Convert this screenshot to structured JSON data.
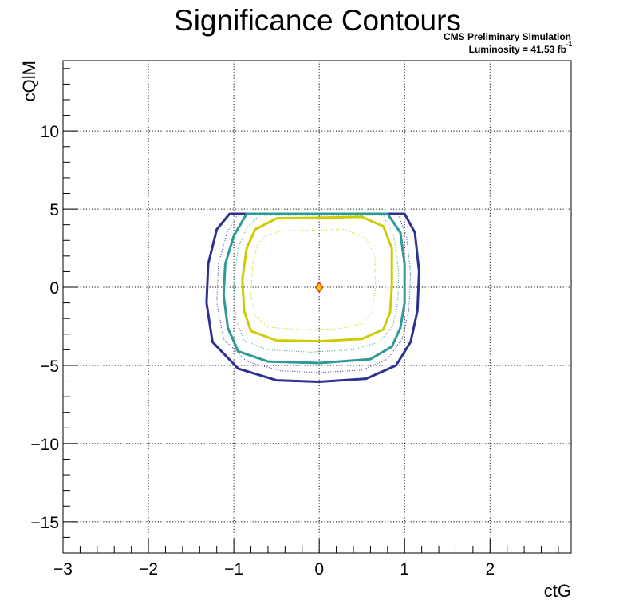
{
  "chart_data": {
    "type": "contour",
    "title": "Significance Contours",
    "xlabel": "ctG",
    "ylabel": "cQlM",
    "xlim": [
      -3,
      2.95
    ],
    "ylim": [
      -17,
      14.5
    ],
    "x_ticks": [
      -3,
      -2,
      -1,
      0,
      1,
      2
    ],
    "x_tick_labels": [
      "−3",
      "−2",
      "−1",
      "0",
      "1",
      "2"
    ],
    "y_ticks": [
      -15,
      -10,
      -5,
      0,
      5,
      10
    ],
    "y_tick_labels": [
      "−15",
      "−10",
      "−5",
      "0",
      "5",
      "10"
    ],
    "grid": true,
    "annotations": {
      "line1": "CMS Preliminary Simulation",
      "lumi_text": "Luminosity = 41.53 fb",
      "lumi_sup": "-1"
    },
    "colors": {
      "navy": "#2e3192",
      "teal": "#2c9a96",
      "yellow": "#cccc00",
      "marker_fill": "#ffd700",
      "marker_edge": "#e0301e"
    },
    "contours": [
      {
        "level": "outer-solid",
        "color": "#2e3192",
        "style": "solid",
        "points": [
          [
            -1.05,
            4.7
          ],
          [
            1.0,
            4.7
          ],
          [
            1.12,
            3.5
          ],
          [
            1.17,
            1.0
          ],
          [
            1.15,
            -1.5
          ],
          [
            1.07,
            -3.5
          ],
          [
            0.9,
            -5.0
          ],
          [
            0.55,
            -5.85
          ],
          [
            0.0,
            -6.05
          ],
          [
            -0.5,
            -5.95
          ],
          [
            -0.95,
            -5.2
          ],
          [
            -1.25,
            -3.5
          ],
          [
            -1.32,
            -1.0
          ],
          [
            -1.3,
            1.5
          ],
          [
            -1.2,
            3.7
          ],
          [
            -1.05,
            4.7
          ]
        ]
      },
      {
        "level": "navy-dotted",
        "color": "#2e3192",
        "style": "dotted",
        "points": [
          [
            -0.95,
            4.7
          ],
          [
            0.92,
            4.7
          ],
          [
            1.02,
            3.3
          ],
          [
            1.07,
            1.0
          ],
          [
            1.05,
            -1.5
          ],
          [
            0.97,
            -3.3
          ],
          [
            0.8,
            -4.6
          ],
          [
            0.5,
            -5.3
          ],
          [
            0.0,
            -5.45
          ],
          [
            -0.45,
            -5.35
          ],
          [
            -0.85,
            -4.75
          ],
          [
            -1.12,
            -3.3
          ],
          [
            -1.2,
            -1.0
          ],
          [
            -1.18,
            1.5
          ],
          [
            -1.08,
            3.5
          ],
          [
            -0.95,
            4.7
          ]
        ]
      },
      {
        "level": "teal-solid",
        "color": "#2c9a96",
        "style": "solid",
        "points": [
          [
            -0.85,
            4.7
          ],
          [
            0.8,
            4.7
          ],
          [
            0.95,
            3.5
          ],
          [
            1.0,
            1.5
          ],
          [
            1.0,
            -1.0
          ],
          [
            0.95,
            -2.6
          ],
          [
            0.85,
            -3.8
          ],
          [
            0.6,
            -4.6
          ],
          [
            0.0,
            -4.85
          ],
          [
            -0.6,
            -4.75
          ],
          [
            -0.95,
            -4.1
          ],
          [
            -1.07,
            -2.6
          ],
          [
            -1.12,
            -0.5
          ],
          [
            -1.1,
            1.5
          ],
          [
            -1.0,
            3.3
          ],
          [
            -0.85,
            4.7
          ]
        ]
      },
      {
        "level": "teal-dotted",
        "color": "#2c9a96",
        "style": "dotted",
        "points": [
          [
            -0.7,
            4.6
          ],
          [
            0.75,
            4.6
          ],
          [
            0.87,
            3.3
          ],
          [
            0.93,
            1.0
          ],
          [
            0.92,
            -1.0
          ],
          [
            0.86,
            -2.5
          ],
          [
            0.7,
            -3.5
          ],
          [
            0.4,
            -4.0
          ],
          [
            -0.1,
            -4.15
          ],
          [
            -0.6,
            -4.0
          ],
          [
            -0.88,
            -3.4
          ],
          [
            -0.98,
            -2.0
          ],
          [
            -1.0,
            0.5
          ],
          [
            -0.95,
            2.5
          ],
          [
            -0.85,
            3.8
          ],
          [
            -0.7,
            4.6
          ]
        ]
      },
      {
        "level": "yellow-solid",
        "color": "#cccc00",
        "style": "solid",
        "points": [
          [
            -0.5,
            4.4
          ],
          [
            0.5,
            4.5
          ],
          [
            0.75,
            3.9
          ],
          [
            0.85,
            2.5
          ],
          [
            0.85,
            0.0
          ],
          [
            0.83,
            -1.6
          ],
          [
            0.75,
            -2.7
          ],
          [
            0.5,
            -3.3
          ],
          [
            0.0,
            -3.45
          ],
          [
            -0.5,
            -3.4
          ],
          [
            -0.8,
            -2.8
          ],
          [
            -0.88,
            -1.5
          ],
          [
            -0.9,
            0.5
          ],
          [
            -0.85,
            2.5
          ],
          [
            -0.75,
            3.7
          ],
          [
            -0.5,
            4.4
          ]
        ]
      },
      {
        "level": "yellow-dotted",
        "color": "#cccc00",
        "style": "dotted",
        "points": [
          [
            -0.45,
            3.6
          ],
          [
            0.3,
            3.7
          ],
          [
            0.55,
            3.1
          ],
          [
            0.65,
            2.0
          ],
          [
            0.66,
            0.0
          ],
          [
            0.62,
            -1.5
          ],
          [
            0.52,
            -2.3
          ],
          [
            0.25,
            -2.65
          ],
          [
            -0.2,
            -2.72
          ],
          [
            -0.6,
            -2.55
          ],
          [
            -0.75,
            -1.8
          ],
          [
            -0.8,
            -0.5
          ],
          [
            -0.78,
            1.5
          ],
          [
            -0.72,
            2.8
          ],
          [
            -0.6,
            3.35
          ],
          [
            -0.45,
            3.6
          ]
        ]
      }
    ],
    "best_fit": {
      "x": 0.0,
      "y": 0.0
    }
  }
}
